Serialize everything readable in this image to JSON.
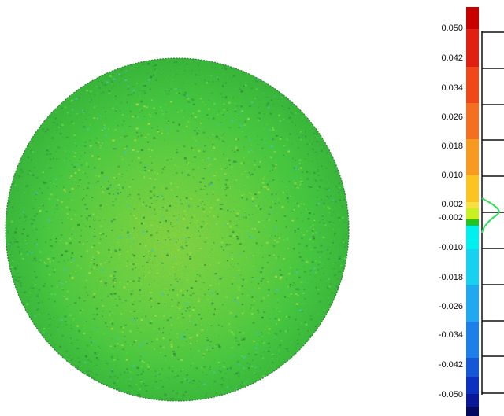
{
  "colors": {
    "sphere_base": "#3fd23a",
    "sphere_yellow": "#a8e03a",
    "sphere_dark": "#2e9a3a",
    "sphere_cyan": "#3cc8b8",
    "rim": "#1a5a2a",
    "histogram_line": "#2ee05a",
    "histogram_axis": "#111111"
  },
  "icons": {
    "sphere": "deviation-sphere-icon",
    "colorbar": "colorbar-icon"
  },
  "legend": {
    "labels": [
      "0.050",
      "0.042",
      "0.034",
      "0.026",
      "0.018",
      "0.010",
      "0.002",
      "-0.002",
      "-0.010",
      "-0.018",
      "-0.026",
      "-0.034",
      "-0.042",
      "-0.050"
    ],
    "segments": [
      {
        "color": "#c80000"
      },
      {
        "color": "#e02010"
      },
      {
        "color": "#f04818"
      },
      {
        "color": "#f47020"
      },
      {
        "color": "#f89a20"
      },
      {
        "color": "#fcc420"
      },
      {
        "color": "#f8e040"
      },
      {
        "color": "#c8f020"
      },
      {
        "color": "#22c422"
      },
      {
        "color": "#00f0f0"
      },
      {
        "color": "#18d0f0"
      },
      {
        "color": "#20a8f0"
      },
      {
        "color": "#1c80e8"
      },
      {
        "color": "#1458d8"
      },
      {
        "color": "#0c30c0"
      },
      {
        "color": "#081898"
      },
      {
        "color": "#040860"
      }
    ]
  }
}
